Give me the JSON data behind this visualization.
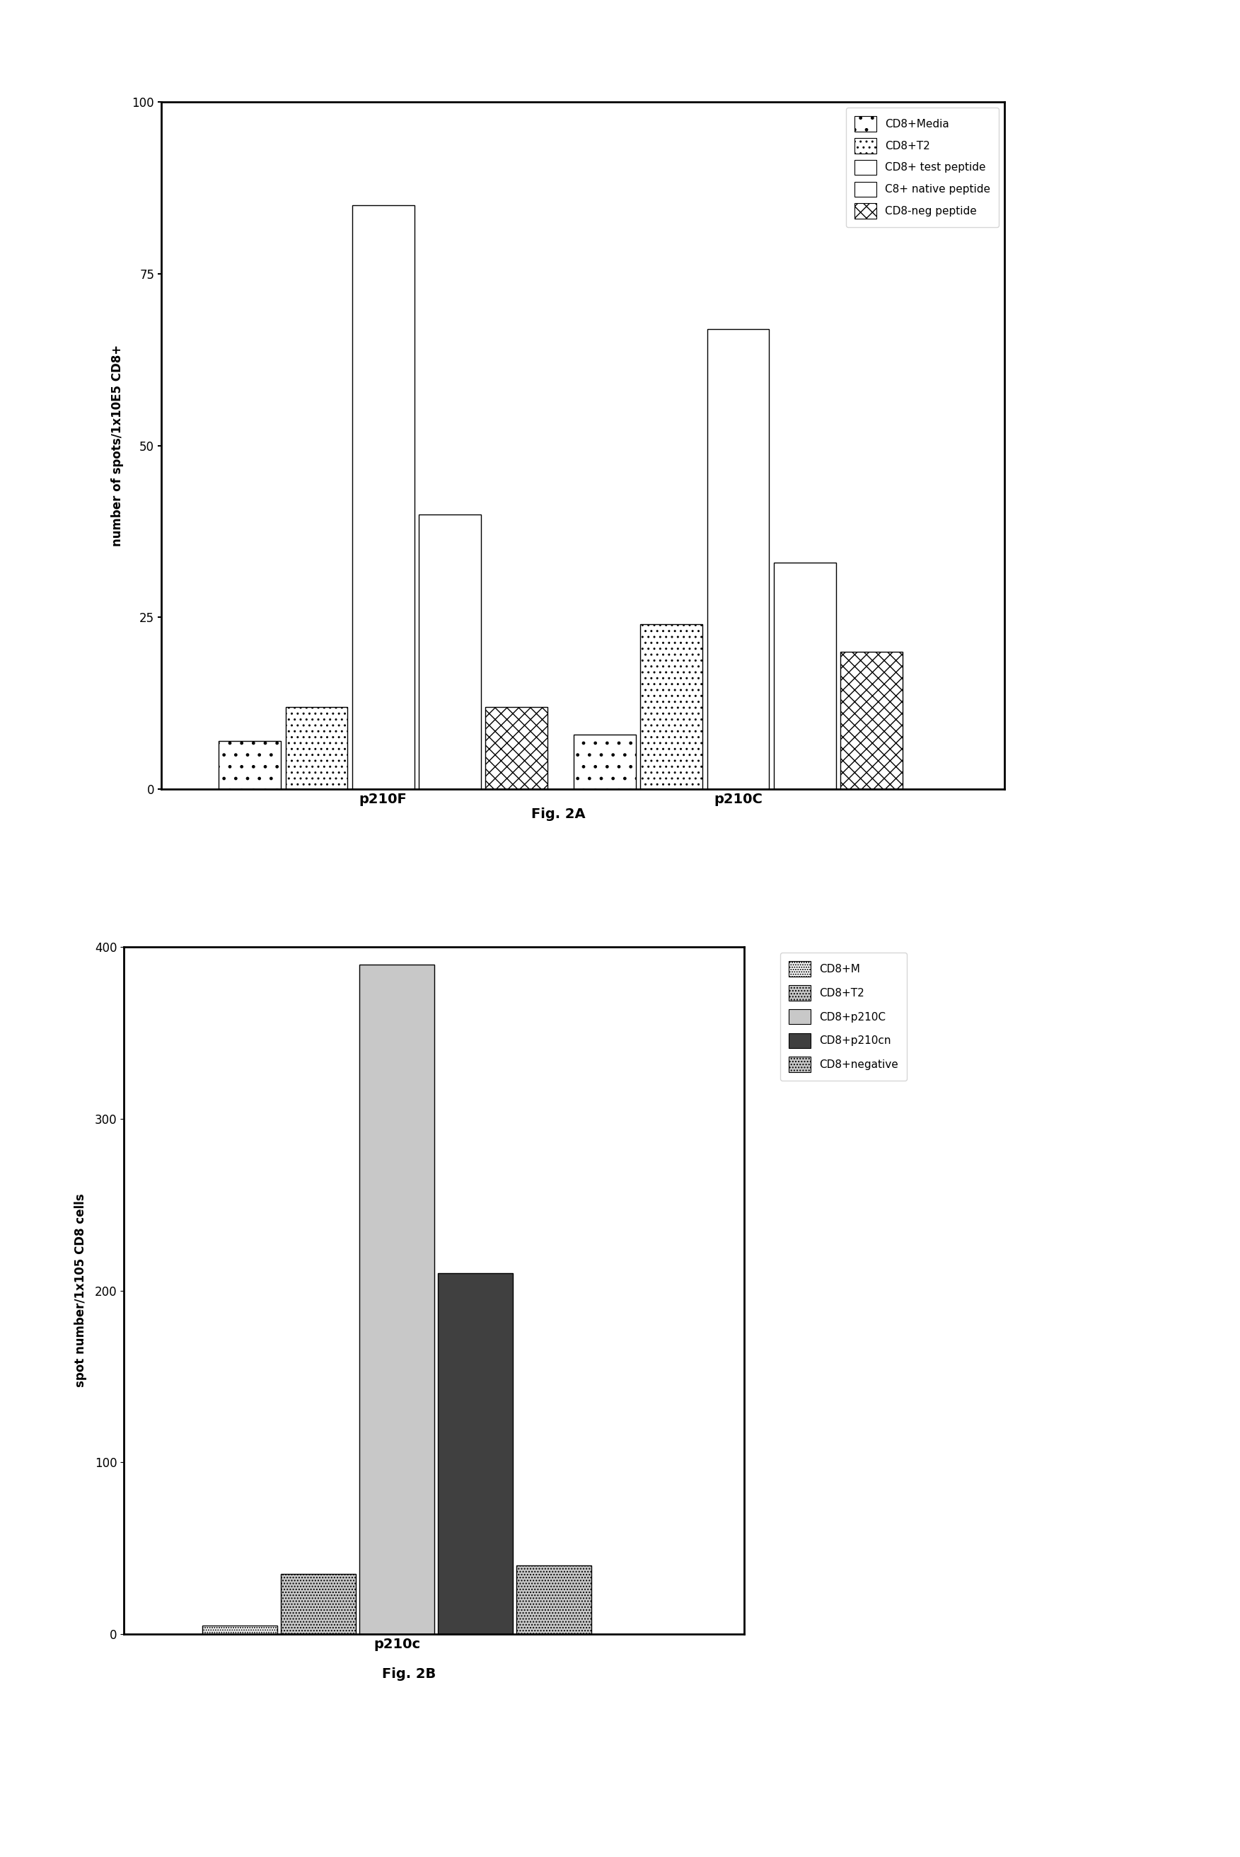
{
  "fig2a": {
    "groups": [
      "p210F",
      "p210C"
    ],
    "series": [
      "CD8+Media",
      "CD8+T2",
      "CD8+ test peptide",
      "C8+ native peptide",
      "CD8-neg peptide"
    ],
    "values_p210F": [
      7,
      12,
      85,
      40,
      12
    ],
    "values_p210C": [
      8,
      24,
      67,
      33,
      20
    ],
    "hatches": [
      "..",
      "..",
      "~",
      "~",
      ".."
    ],
    "ylabel": "number of spots/1x10E5 CD8+",
    "ylim": [
      0,
      100
    ],
    "yticks": [
      0,
      25,
      50,
      75,
      100
    ]
  },
  "fig2b": {
    "group": "p210c",
    "series": [
      "CD8+M",
      "CD8+T2",
      "CD8+p210C",
      "CD8+p210cn",
      "CD8+negative"
    ],
    "values": [
      5,
      35,
      390,
      210,
      40
    ],
    "ylabel": "spot number/1x105 CD8 cells",
    "ylim": [
      0,
      400
    ],
    "yticks": [
      0,
      100,
      200,
      300,
      400
    ]
  },
  "fig2a_label": "Fig. 2A",
  "fig2b_label": "Fig. 2B"
}
